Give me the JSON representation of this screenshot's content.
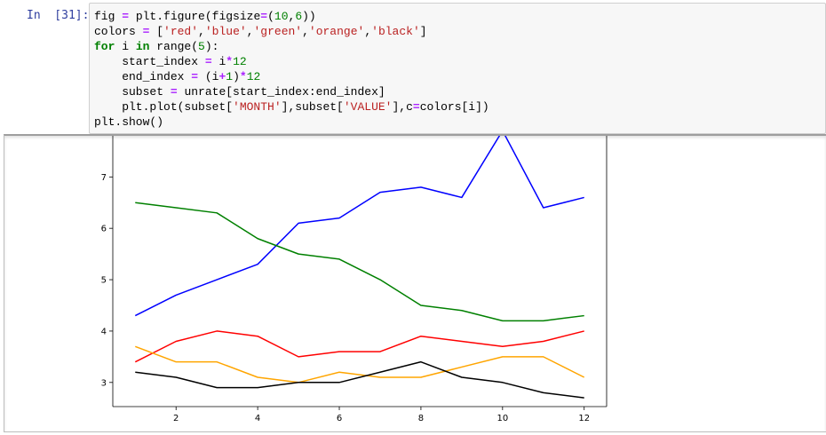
{
  "cell": {
    "prompt": "In  [31]:",
    "code_lines": [
      [
        {
          "t": "fig "
        },
        {
          "t": "=",
          "c": "op"
        },
        {
          "t": " plt.figure(figsize"
        },
        {
          "t": "=",
          "c": "op"
        },
        {
          "t": "("
        },
        {
          "t": "10",
          "c": "num"
        },
        {
          "t": ","
        },
        {
          "t": "6",
          "c": "num"
        },
        {
          "t": "))"
        }
      ],
      [
        {
          "t": "colors "
        },
        {
          "t": "=",
          "c": "op"
        },
        {
          "t": " ["
        },
        {
          "t": "'red'",
          "c": "str"
        },
        {
          "t": ","
        },
        {
          "t": "'blue'",
          "c": "str"
        },
        {
          "t": ","
        },
        {
          "t": "'green'",
          "c": "str"
        },
        {
          "t": ","
        },
        {
          "t": "'orange'",
          "c": "str"
        },
        {
          "t": ","
        },
        {
          "t": "'black'",
          "c": "str"
        },
        {
          "t": "]"
        }
      ],
      [
        {
          "t": "for",
          "c": "kw"
        },
        {
          "t": " i "
        },
        {
          "t": "in",
          "c": "kw"
        },
        {
          "t": " range("
        },
        {
          "t": "5",
          "c": "num"
        },
        {
          "t": "):"
        }
      ],
      [
        {
          "t": "    start_index "
        },
        {
          "t": "=",
          "c": "op"
        },
        {
          "t": " i"
        },
        {
          "t": "*",
          "c": "op"
        },
        {
          "t": "12",
          "c": "num"
        }
      ],
      [
        {
          "t": "    end_index "
        },
        {
          "t": "=",
          "c": "op"
        },
        {
          "t": " (i"
        },
        {
          "t": "+",
          "c": "op"
        },
        {
          "t": "1",
          "c": "num"
        },
        {
          "t": ")"
        },
        {
          "t": "*",
          "c": "op"
        },
        {
          "t": "12",
          "c": "num"
        }
      ],
      [
        {
          "t": "    subset "
        },
        {
          "t": "=",
          "c": "op"
        },
        {
          "t": " unrate[start_index:end_index]"
        }
      ],
      [
        {
          "t": "    plt.plot(subset["
        },
        {
          "t": "'MONTH'",
          "c": "str"
        },
        {
          "t": "],subset["
        },
        {
          "t": "'VALUE'",
          "c": "str"
        },
        {
          "t": "],c"
        },
        {
          "t": "=",
          "c": "op"
        },
        {
          "t": "colors[i])"
        }
      ],
      [
        {
          "t": "plt.show()"
        }
      ]
    ]
  },
  "chart_data": {
    "type": "line",
    "xlim": [
      0.45,
      12.55
    ],
    "ylim": [
      2.53,
      7.8
    ],
    "x_ticks": [
      "2",
      "4",
      "6",
      "8",
      "10",
      "12"
    ],
    "y_ticks": [
      "3",
      "4",
      "5",
      "6",
      "7"
    ],
    "x": [
      1,
      2,
      3,
      4,
      5,
      6,
      7,
      8,
      9,
      10,
      11,
      12
    ],
    "series": [
      {
        "color": "#ff0000",
        "values": [
          3.4,
          3.8,
          4.0,
          3.9,
          3.5,
          3.6,
          3.6,
          3.9,
          3.8,
          3.7,
          3.8,
          4.0
        ]
      },
      {
        "color": "#0000ff",
        "values": [
          4.3,
          4.7,
          5.0,
          5.3,
          6.1,
          6.2,
          6.7,
          6.8,
          6.6,
          7.9,
          6.4,
          6.6
        ]
      },
      {
        "color": "#008000",
        "values": [
          6.5,
          6.4,
          6.3,
          5.8,
          5.5,
          5.4,
          5.0,
          4.5,
          4.4,
          4.2,
          4.2,
          4.3
        ]
      },
      {
        "color": "#ffa500",
        "values": [
          3.7,
          3.4,
          3.4,
          3.1,
          3.0,
          3.2,
          3.1,
          3.1,
          3.3,
          3.5,
          3.5,
          3.1
        ]
      },
      {
        "color": "#000000",
        "values": [
          3.2,
          3.1,
          2.9,
          2.9,
          3.0,
          3.0,
          3.2,
          3.4,
          3.1,
          3.0,
          2.8,
          2.7
        ]
      }
    ]
  }
}
